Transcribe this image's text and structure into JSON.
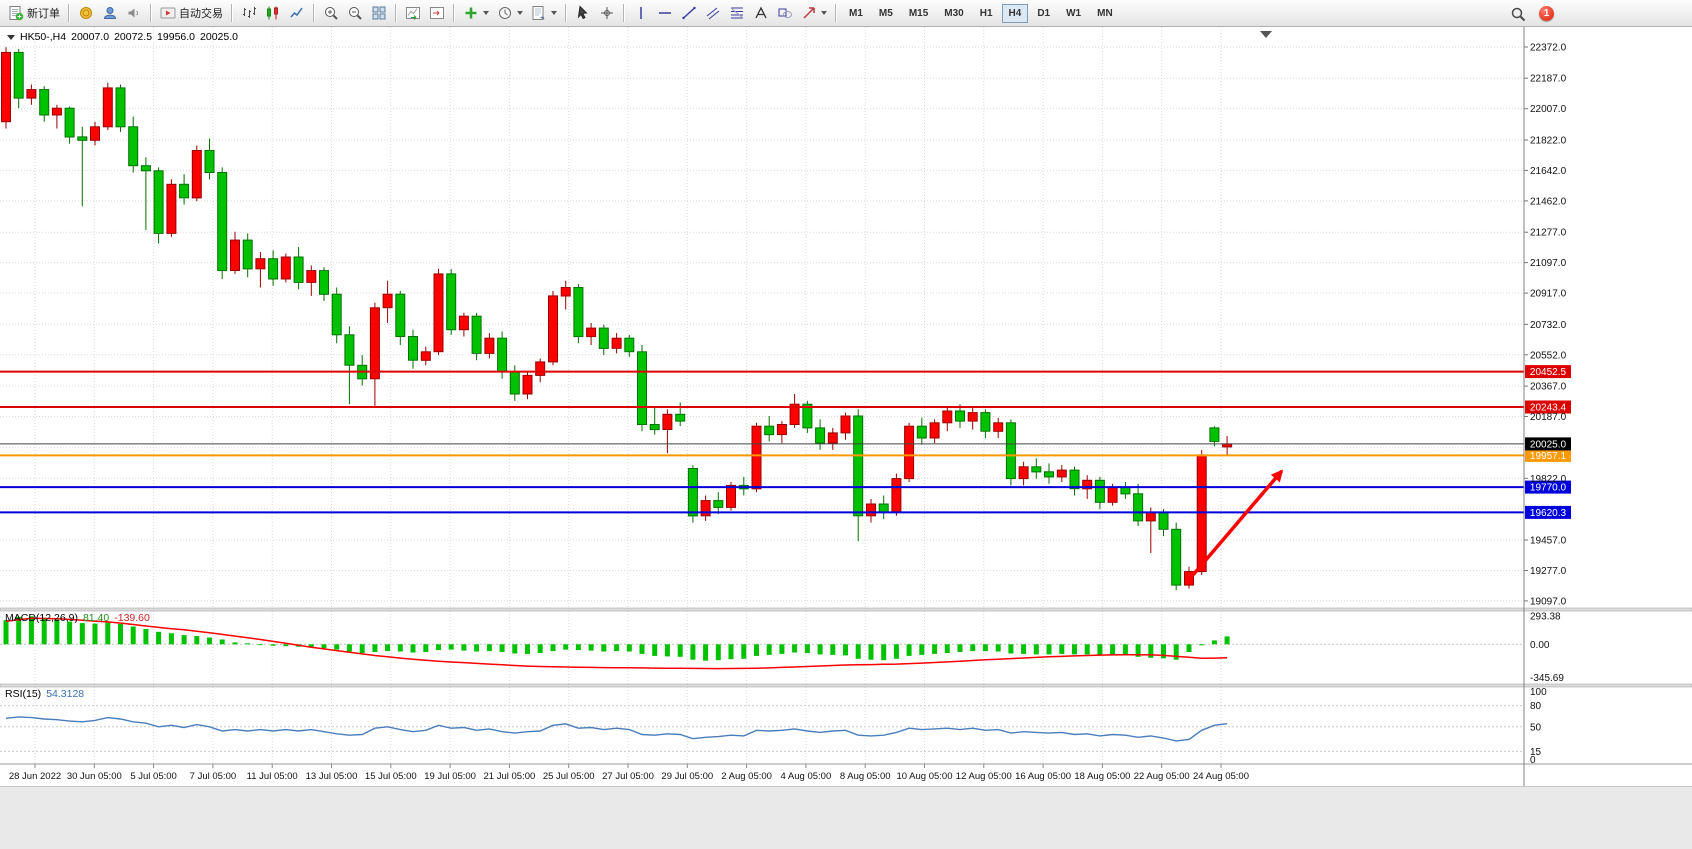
{
  "toolbar": {
    "groups": [
      [
        {
          "name": "new-order",
          "icon": "new-order",
          "label": "新订单"
        }
      ],
      [
        {
          "name": "deposit",
          "icon": "coin"
        },
        {
          "name": "accounts",
          "icon": "profile"
        },
        {
          "name": "alerts",
          "icon": "speaker"
        }
      ],
      [
        {
          "name": "auto-trading",
          "icon": "autotrade",
          "label": "自动交易"
        }
      ],
      [
        {
          "name": "bar-chart-mode",
          "icon": "bars-chart"
        },
        {
          "name": "candlestick-chart-mode",
          "icon": "candles-chart"
        },
        {
          "name": "line-chart-mode",
          "icon": "line-chart"
        }
      ],
      [
        {
          "name": "zoom-in",
          "icon": "zoom-in"
        },
        {
          "name": "zoom-out",
          "icon": "zoom-out"
        },
        {
          "name": "tile-windows",
          "icon": "tile-windows"
        }
      ],
      [
        {
          "name": "auto-scroll",
          "icon": "auto-scroll"
        },
        {
          "name": "chart-shift",
          "icon": "chart-shift"
        }
      ],
      [
        {
          "name": "indicators",
          "icon": "indicators",
          "caret": true
        },
        {
          "name": "periods",
          "icon": "clock",
          "caret": true
        },
        {
          "name": "templates",
          "icon": "templates",
          "caret": true
        }
      ],
      [
        {
          "name": "cursor",
          "icon": "cursor"
        },
        {
          "name": "crosshair",
          "icon": "crosshair"
        }
      ],
      [
        {
          "name": "vertical-line",
          "icon": "vline"
        },
        {
          "name": "horizontal-line",
          "icon": "hline"
        },
        {
          "name": "trendline",
          "icon": "trendline"
        },
        {
          "name": "channel",
          "icon": "channel"
        },
        {
          "name": "fibonacci",
          "icon": "fibo"
        },
        {
          "name": "text",
          "icon": "text"
        },
        {
          "name": "shapes",
          "icon": "shapes"
        },
        {
          "name": "arrows",
          "icon": "arrows",
          "caret": true
        }
      ]
    ],
    "timeframes": [
      "M1",
      "M5",
      "M15",
      "M30",
      "H1",
      "H4",
      "D1",
      "W1",
      "MN"
    ],
    "active_timeframe": "H4",
    "notification_count": "1"
  },
  "chart": {
    "symbol_info": "HK50-,H4",
    "ohlc": {
      "open": "20007.0",
      "high": "20072.5",
      "low": "19956.0",
      "close": "20025.0"
    }
  },
  "chart_data": {
    "type": "candlestick",
    "symbol": "HK50-",
    "timeframe": "H4",
    "convention": {
      "up_color": "#FF0000",
      "down_color": "#00C200",
      "note": "chinese convention: red = up, green = down"
    },
    "y_axis": {
      "grid": [
        {
          "v": 22372,
          "label": "22372.0"
        },
        {
          "v": 22187,
          "label": "22187.0"
        },
        {
          "v": 22007,
          "label": "22007.0"
        },
        {
          "v": 21822,
          "label": "21822.0"
        },
        {
          "v": 21642,
          "label": "21642.0"
        },
        {
          "v": 21462,
          "label": "21462.0"
        },
        {
          "v": 21277,
          "label": "21277.0"
        },
        {
          "v": 21097,
          "label": "21097.0"
        },
        {
          "v": 20917,
          "label": "20917.0"
        },
        {
          "v": 20732,
          "label": "20732.0"
        },
        {
          "v": 20552,
          "label": "20552.0"
        },
        {
          "v": 20367,
          "label": "20367.0"
        },
        {
          "v": 20187,
          "label": "20187.0"
        },
        {
          "v": 20002,
          "label": ""
        },
        {
          "v": 19822,
          "label": "19822.0"
        },
        {
          "v": 19642,
          "label": ""
        },
        {
          "v": 19457,
          "label": "19457.0"
        },
        {
          "v": 19277,
          "label": "19277.0"
        },
        {
          "v": 19097,
          "label": "19097.0"
        }
      ],
      "range": [
        19055,
        22490
      ]
    },
    "x_labels": [
      "28 Jun 2022",
      "30 Jun 05:00",
      "5 Jul 05:00",
      "7 Jul 05:00",
      "11 Jul 05:00",
      "13 Jul 05:00",
      "15 Jul 05:00",
      "19 Jul 05:00",
      "21 Jul 05:00",
      "25 Jul 05:00",
      "27 Jul 05:00",
      "29 Jul 05:00",
      "2 Aug 05:00",
      "4 Aug 05:00",
      "8 Aug 05:00",
      "10 Aug 05:00",
      "12 Aug 05:00",
      "16 Aug 05:00",
      "18 Aug 05:00",
      "22 Aug 05:00",
      "24 Aug 05:00"
    ],
    "levels": [
      {
        "price": 20452.5,
        "label": "20452.5",
        "color": "#DD0000"
      },
      {
        "price": 20243.4,
        "label": "20243.4",
        "color": "#DD0000"
      },
      {
        "price": 19957.1,
        "label": "19957.1",
        "color": "#FF9900"
      },
      {
        "price": 19770.0,
        "label": "19770.0",
        "color": "#0000DD"
      },
      {
        "price": 19620.3,
        "label": "19620.3",
        "color": "#0000DD"
      }
    ],
    "current_price": {
      "price": 20025.0,
      "label": "20025.0",
      "color": "#000000"
    },
    "annotations": [
      {
        "type": "arrow",
        "color": "#FF0000",
        "from": {
          "bar": 93.2,
          "price": 19240
        },
        "to": {
          "bar": 100.3,
          "price": 19865
        }
      }
    ],
    "candles": [
      [
        21930,
        22370,
        21890,
        22340
      ],
      [
        22340,
        22360,
        22010,
        22070
      ],
      [
        22070,
        22150,
        22030,
        22120
      ],
      [
        22120,
        22140,
        21930,
        21970
      ],
      [
        21970,
        22030,
        21890,
        22010
      ],
      [
        22010,
        22020,
        21800,
        21840
      ],
      [
        21840,
        21900,
        21430,
        21820
      ],
      [
        21820,
        21930,
        21790,
        21900
      ],
      [
        21900,
        22160,
        21880,
        22130
      ],
      [
        22130,
        22150,
        21870,
        21900
      ],
      [
        21900,
        21960,
        21630,
        21670
      ],
      [
        21670,
        21720,
        21290,
        21640
      ],
      [
        21640,
        21660,
        21210,
        21270
      ],
      [
        21270,
        21590,
        21250,
        21560
      ],
      [
        21560,
        21620,
        21440,
        21480
      ],
      [
        21480,
        21790,
        21460,
        21760
      ],
      [
        21760,
        21830,
        21590,
        21630
      ],
      [
        21630,
        21660,
        21000,
        21050
      ],
      [
        21050,
        21280,
        21030,
        21230
      ],
      [
        21230,
        21270,
        21010,
        21060
      ],
      [
        21060,
        21160,
        20950,
        21120
      ],
      [
        21120,
        21170,
        20960,
        21000
      ],
      [
        21000,
        21150,
        20980,
        21130
      ],
      [
        21130,
        21190,
        20940,
        20980
      ],
      [
        20980,
        21080,
        20900,
        21050
      ],
      [
        21050,
        21070,
        20870,
        20910
      ],
      [
        20910,
        20950,
        20620,
        20670
      ],
      [
        20670,
        20720,
        20260,
        20490
      ],
      [
        20490,
        20550,
        20370,
        20410
      ],
      [
        20410,
        20860,
        20250,
        20830
      ],
      [
        20830,
        20990,
        20740,
        20910
      ],
      [
        20910,
        20930,
        20610,
        20660
      ],
      [
        20660,
        20700,
        20470,
        20520
      ],
      [
        20520,
        20600,
        20490,
        20570
      ],
      [
        20570,
        21060,
        20550,
        21030
      ],
      [
        21030,
        21060,
        20670,
        20700
      ],
      [
        20700,
        20800,
        20660,
        20780
      ],
      [
        20780,
        20800,
        20520,
        20560
      ],
      [
        20560,
        20680,
        20530,
        20650
      ],
      [
        20650,
        20690,
        20410,
        20450
      ],
      [
        20450,
        20490,
        20280,
        20320
      ],
      [
        20320,
        20450,
        20290,
        20430
      ],
      [
        20430,
        20530,
        20390,
        20510
      ],
      [
        20510,
        20930,
        20490,
        20900
      ],
      [
        20900,
        20990,
        20820,
        20950
      ],
      [
        20950,
        20970,
        20620,
        20660
      ],
      [
        20660,
        20740,
        20610,
        20710
      ],
      [
        20710,
        20730,
        20550,
        20590
      ],
      [
        20590,
        20680,
        20560,
        20650
      ],
      [
        20650,
        20670,
        20540,
        20570
      ],
      [
        20570,
        20610,
        20100,
        20140
      ],
      [
        20140,
        20250,
        20080,
        20110
      ],
      [
        20110,
        20230,
        19970,
        20200
      ],
      [
        20200,
        20270,
        20130,
        20160
      ],
      [
        19880,
        19900,
        19560,
        19600
      ],
      [
        19600,
        19720,
        19570,
        19690
      ],
      [
        19690,
        19740,
        19610,
        19650
      ],
      [
        19650,
        19800,
        19630,
        19780
      ],
      [
        19780,
        19830,
        19720,
        19760
      ],
      [
        19760,
        20150,
        19740,
        20130
      ],
      [
        20130,
        20190,
        20040,
        20080
      ],
      [
        20080,
        20160,
        20030,
        20140
      ],
      [
        20140,
        20320,
        20120,
        20260
      ],
      [
        20260,
        20280,
        20090,
        20120
      ],
      [
        20120,
        20170,
        19990,
        20030
      ],
      [
        20030,
        20120,
        19990,
        20090
      ],
      [
        20090,
        20210,
        20050,
        20190
      ],
      [
        20190,
        20230,
        19450,
        19600
      ],
      [
        19600,
        19700,
        19560,
        19670
      ],
      [
        19670,
        19720,
        19580,
        19620
      ],
      [
        19620,
        19850,
        19600,
        19820
      ],
      [
        19820,
        20150,
        19800,
        20130
      ],
      [
        20130,
        20180,
        20020,
        20060
      ],
      [
        20060,
        20170,
        20030,
        20150
      ],
      [
        20150,
        20250,
        20100,
        20220
      ],
      [
        20220,
        20260,
        20120,
        20160
      ],
      [
        20160,
        20240,
        20110,
        20210
      ],
      [
        20210,
        20230,
        20060,
        20100
      ],
      [
        20100,
        20180,
        20060,
        20150
      ],
      [
        20150,
        20170,
        19780,
        19820
      ],
      [
        19820,
        19920,
        19780,
        19890
      ],
      [
        19890,
        19940,
        19820,
        19860
      ],
      [
        19860,
        19910,
        19790,
        19830
      ],
      [
        19830,
        19900,
        19800,
        19870
      ],
      [
        19870,
        19890,
        19720,
        19760
      ],
      [
        19760,
        19840,
        19700,
        19810
      ],
      [
        19810,
        19830,
        19640,
        19680
      ],
      [
        19680,
        19790,
        19660,
        19770
      ],
      [
        19770,
        19800,
        19700,
        19730
      ],
      [
        19730,
        19790,
        19540,
        19570
      ],
      [
        19570,
        19650,
        19380,
        19620
      ],
      [
        19620,
        19640,
        19480,
        19520
      ],
      [
        19520,
        19560,
        19160,
        19190
      ],
      [
        19190,
        19300,
        19170,
        19270
      ],
      [
        19270,
        19990,
        19250,
        19960
      ],
      [
        20120,
        20130,
        20010,
        20040
      ],
      [
        20007,
        20072.5,
        19956,
        20025
      ]
    ],
    "indicators": {
      "macd": {
        "label": "MACD(12,26,9)",
        "main_value": "81.40",
        "signal_value": "-139.60",
        "axis_labels": [
          {
            "v": 293.38,
            "label": "293.38"
          },
          {
            "v": 0,
            "label": "0.00"
          },
          {
            "v": -345.69,
            "label": "-345.69"
          }
        ],
        "histogram": [
          250,
          285,
          290,
          275,
          255,
          235,
          220,
          215,
          225,
          210,
          185,
          160,
          130,
          115,
          95,
          85,
          70,
          50,
          20,
          10,
          -5,
          -15,
          -20,
          -25,
          -30,
          -40,
          -55,
          -75,
          -90,
          -80,
          -70,
          -75,
          -85,
          -80,
          -60,
          -55,
          -65,
          -75,
          -70,
          -80,
          -95,
          -100,
          -90,
          -70,
          -55,
          -60,
          -65,
          -75,
          -70,
          -75,
          -100,
          -120,
          -125,
          -130,
          -160,
          -170,
          -165,
          -155,
          -150,
          -120,
          -110,
          -100,
          -85,
          -90,
          -105,
          -110,
          -115,
          -150,
          -160,
          -165,
          -150,
          -120,
          -110,
          -100,
          -90,
          -80,
          -70,
          -70,
          -75,
          -95,
          -100,
          -105,
          -105,
          -100,
          -105,
          -105,
          -110,
          -110,
          -115,
          -130,
          -140,
          -145,
          -160,
          -80,
          -10,
          40,
          81.4
        ],
        "signal": [
          240,
          255,
          270,
          268,
          264,
          258,
          250,
          241,
          232,
          220,
          205,
          190,
          175,
          162,
          150,
          135,
          120,
          103,
          85,
          68,
          50,
          30,
          10,
          -10,
          -30,
          -48,
          -65,
          -83,
          -100,
          -116,
          -130,
          -143,
          -155,
          -166,
          -175,
          -183,
          -190,
          -198,
          -205,
          -213,
          -220,
          -226,
          -230,
          -233,
          -235,
          -238,
          -240,
          -242,
          -243,
          -244,
          -245,
          -247,
          -248,
          -249,
          -250,
          -251,
          -252,
          -251,
          -250,
          -248,
          -245,
          -240,
          -235,
          -230,
          -225,
          -220,
          -215,
          -212,
          -210,
          -207,
          -205,
          -200,
          -195,
          -189,
          -182,
          -175,
          -168,
          -161,
          -155,
          -148,
          -142,
          -136,
          -130,
          -125,
          -120,
          -116,
          -112,
          -110,
          -108,
          -109,
          -110,
          -115,
          -125,
          -135,
          -145,
          -143,
          -139.6
        ]
      },
      "rsi": {
        "label": "RSI(15)",
        "value": "54.3128",
        "axis_labels": [
          {
            "v": 100,
            "label": "100"
          },
          {
            "v": 80,
            "label": "80"
          },
          {
            "v": 50,
            "label": "50"
          },
          {
            "v": 15,
            "label": "15"
          },
          {
            "v": 0,
            "label": "0"
          }
        ],
        "levels": [
          80,
          50,
          15
        ],
        "values": [
          62,
          64,
          63,
          61,
          60,
          58,
          57,
          59,
          63,
          61,
          57,
          55,
          50,
          52,
          49,
          53,
          50,
          44,
          46,
          44,
          46,
          44,
          46,
          44,
          46,
          43,
          40,
          38,
          39,
          48,
          50,
          46,
          43,
          45,
          52,
          48,
          49,
          45,
          47,
          43,
          41,
          43,
          44,
          52,
          54,
          48,
          49,
          46,
          48,
          46,
          39,
          38,
          40,
          39,
          33,
          35,
          36,
          38,
          37,
          45,
          44,
          45,
          47,
          44,
          42,
          44,
          45,
          38,
          37,
          38,
          42,
          48,
          46,
          47,
          48,
          46,
          48,
          45,
          46,
          41,
          43,
          42,
          41,
          42,
          39,
          40,
          37,
          39,
          38,
          35,
          37,
          34,
          30,
          32,
          45,
          52,
          54.3
        ]
      }
    }
  }
}
